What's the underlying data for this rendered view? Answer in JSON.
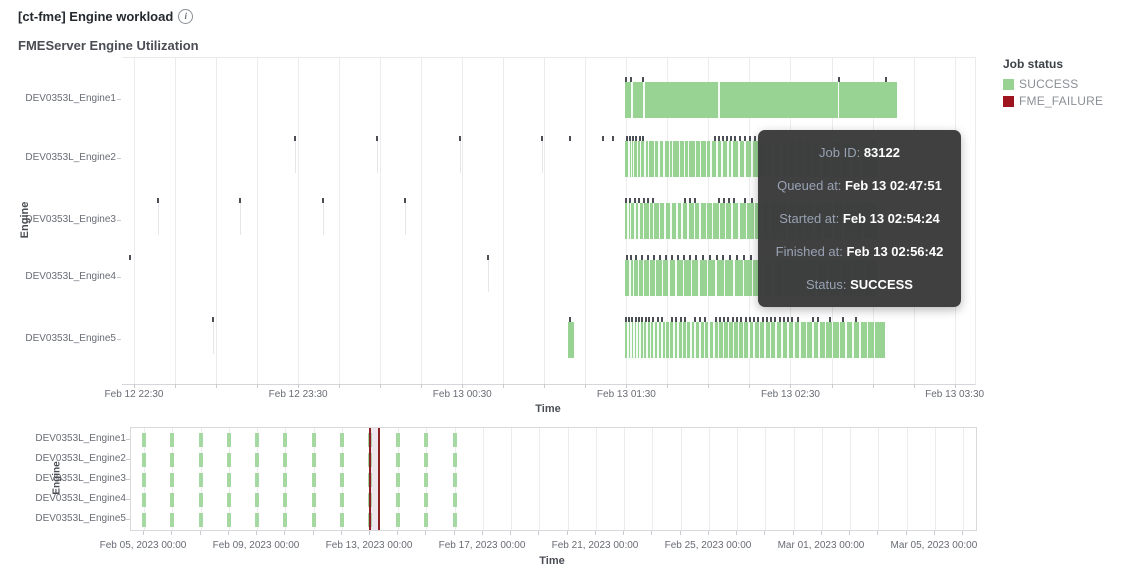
{
  "page": {
    "title": "[ct-fme] Engine workload"
  },
  "legend": {
    "title": "Job status",
    "items": [
      {
        "label": "SUCCESS",
        "color": "#99d394"
      },
      {
        "label": "FME_FAILURE",
        "color": "#9e151f"
      }
    ]
  },
  "tooltip": {
    "rows": [
      {
        "label": "Job ID:",
        "value": "83122"
      },
      {
        "label": "Queued at:",
        "value": "Feb 13 02:47:51"
      },
      {
        "label": "Started at:",
        "value": "Feb 13 02:54:24"
      },
      {
        "label": "Finished at:",
        "value": "Feb 13 02:56:42"
      },
      {
        "label": "Status:",
        "value": "SUCCESS"
      }
    ]
  },
  "chart_data": [
    {
      "type": "bar",
      "subtype": "gantt-timeline",
      "title": "FMEServer Engine Utilization",
      "xlabel": "Time",
      "ylabel": "Engine",
      "legend_position": "right",
      "categories": [
        "DEV0353L_Engine1",
        "DEV0353L_Engine2",
        "DEV0353L_Engine3",
        "DEV0353L_Engine4",
        "DEV0353L_Engine5"
      ],
      "x_ticks": [
        {
          "label": "Feb 12 22:30",
          "f": 0.0141
        },
        {
          "label": "Feb 12 23:30",
          "f": 0.2065
        },
        {
          "label": "Feb 13 00:30",
          "f": 0.3989
        },
        {
          "label": "Feb 13 01:30",
          "f": 0.5913
        },
        {
          "label": "Feb 13 02:30",
          "f": 0.7837
        },
        {
          "label": "Feb 13 03:30",
          "f": 0.9761
        }
      ],
      "grid": {
        "start": 0.0141,
        "step": 0.0481,
        "count": 21,
        "label_every": 4
      },
      "colors": {
        "success": "#99d394",
        "failure": "#9e151f",
        "mark": "#4b4f55",
        "stripe": "rgba(255,255,255,0.9)",
        "stem": "rgba(120,120,135,0.18)",
        "grid": "#ececef",
        "tick": "#c9c9ce"
      },
      "engines": [
        {
          "name": "DEV0353L_Engine1",
          "bars": [
            [
              0.59,
              0.908
            ]
          ],
          "stripes": [
            0.597,
            0.611,
            0.699,
            0.839
          ],
          "marks": [
            0.591,
            0.597,
            0.611,
            0.84,
            0.896
          ],
          "stems": []
        },
        {
          "name": "DEV0353L_Engine2",
          "bars": [
            [
              0.59,
              0.885
            ]
          ],
          "stripes": [
            0.5935,
            0.5965,
            0.599,
            0.6035,
            0.607,
            0.6125,
            0.6165,
            0.6235,
            0.6285,
            0.6345,
            0.641,
            0.6445,
            0.6525,
            0.6585,
            0.6635,
            0.6715,
            0.6775,
            0.6845,
            0.6895,
            0.6965,
            0.7025,
            0.7095,
            0.7145,
            0.7225,
            0.7295,
            0.7375,
            0.7455,
            0.7545,
            0.7625,
            0.7715,
            0.7795,
            0.7895,
            0.7985,
            0.8085,
            0.8185,
            0.8295,
            0.8415,
            0.8535,
            0.8655,
            0.8755
          ],
          "marks": [
            0.203,
            0.299,
            0.396,
            0.492,
            0.525,
            0.564,
            0.576,
            0.592,
            0.5955,
            0.599,
            0.603,
            0.607,
            0.611,
            0.695,
            0.7,
            0.704,
            0.709,
            0.714,
            0.719,
            0.724,
            0.73,
            0.736,
            0.742
          ],
          "stems": [
            0.203,
            0.299,
            0.396,
            0.492
          ]
        },
        {
          "name": "DEV0353L_Engine3",
          "bars": [
            [
              0.59,
              0.885
            ]
          ],
          "stripes": [
            0.5925,
            0.5955,
            0.6005,
            0.6055,
            0.6105,
            0.6175,
            0.6225,
            0.6295,
            0.6355,
            0.6425,
            0.6495,
            0.6555,
            0.6625,
            0.6705,
            0.6765,
            0.6845,
            0.6915,
            0.6995,
            0.7065,
            0.7145,
            0.7225,
            0.7315,
            0.7405,
            0.7495,
            0.7585,
            0.7685,
            0.7785,
            0.7885,
            0.7995,
            0.8105,
            0.8215,
            0.8325,
            0.8445,
            0.8565,
            0.8685
          ],
          "marks": [
            0.042,
            0.138,
            0.236,
            0.332,
            0.591,
            0.596,
            0.601,
            0.606,
            0.612,
            0.617,
            0.623,
            0.66,
            0.666,
            0.672,
            0.7,
            0.706,
            0.712,
            0.718,
            0.73,
            0.738
          ],
          "stems": [
            0.042,
            0.138,
            0.236,
            0.332
          ]
        },
        {
          "name": "DEV0353L_Engine4",
          "bars": [
            [
              0.59,
              0.885
            ]
          ],
          "stripes": [
            0.5945,
            0.5985,
            0.6045,
            0.6105,
            0.6175,
            0.6245,
            0.6325,
            0.6405,
            0.6485,
            0.6575,
            0.6665,
            0.6755,
            0.6855,
            0.6955,
            0.7055,
            0.7165,
            0.7275,
            0.7385,
            0.7505,
            0.7625,
            0.7745,
            0.7875,
            0.8005,
            0.8135,
            0.8275,
            0.8415,
            0.8555,
            0.8695
          ],
          "marks": [
            0.009,
            0.429,
            0.592,
            0.597,
            0.603,
            0.61,
            0.617,
            0.624,
            0.631,
            0.638,
            0.645,
            0.652,
            0.659,
            0.666,
            0.673,
            0.681,
            0.689,
            0.697,
            0.705,
            0.713,
            0.721,
            0.729,
            0.737
          ],
          "stems": [
            0.429
          ]
        },
        {
          "name": "DEV0353L_Engine5",
          "bars": [
            [
              0.523,
              0.53
            ],
            [
              0.59,
              0.894
            ]
          ],
          "stripes": [
            0.5925,
            0.596,
            0.5995,
            0.603,
            0.6065,
            0.6105,
            0.6145,
            0.6185,
            0.623,
            0.6275,
            0.632,
            0.6365,
            0.641,
            0.646,
            0.651,
            0.656,
            0.661,
            0.666,
            0.671,
            0.6765,
            0.682,
            0.6875,
            0.693,
            0.6985,
            0.704,
            0.71,
            0.716,
            0.722,
            0.728,
            0.734,
            0.74,
            0.7465,
            0.753,
            0.7595,
            0.766,
            0.773,
            0.78,
            0.787,
            0.794,
            0.8015,
            0.809,
            0.8165,
            0.824,
            0.832,
            0.84,
            0.848,
            0.856,
            0.8645,
            0.873,
            0.8815
          ],
          "marks": [
            0.107,
            0.525,
            0.591,
            0.594,
            0.598,
            0.602,
            0.606,
            0.61,
            0.614,
            0.618,
            0.623,
            0.628,
            0.633,
            0.645,
            0.65,
            0.655,
            0.66,
            0.672,
            0.678,
            0.684,
            0.696,
            0.701,
            0.706,
            0.711,
            0.716,
            0.721,
            0.726,
            0.731,
            0.736,
            0.741,
            0.746,
            0.751,
            0.756,
            0.761,
            0.766,
            0.771,
            0.776,
            0.781,
            0.786,
            0.792,
            0.81,
            0.816,
            0.83,
            0.845,
            0.86
          ],
          "stems": [
            0.107
          ]
        }
      ]
    },
    {
      "type": "bar",
      "subtype": "overview-timeline",
      "xlabel": "Time",
      "ylabel": "Engine",
      "categories": [
        "DEV0353L_Engine1",
        "DEV0353L_Engine2",
        "DEV0353L_Engine3",
        "DEV0353L_Engine4",
        "DEV0353L_Engine5"
      ],
      "x_ticks": [
        {
          "label": "Feb 05, 2023 00:00",
          "f": 0.0154
        },
        {
          "label": "Feb 09, 2023 00:00",
          "f": 0.1491
        },
        {
          "label": "Feb 13, 2023 00:00",
          "f": 0.2829
        },
        {
          "label": "Feb 17, 2023 00:00",
          "f": 0.4166
        },
        {
          "label": "Feb 21, 2023 00:00",
          "f": 0.5503
        },
        {
          "label": "Feb 25, 2023 00:00",
          "f": 0.684
        },
        {
          "label": "Mar 01, 2023 00:00",
          "f": 0.8177
        },
        {
          "label": "Mar 05, 2023 00:00",
          "f": 0.9514
        }
      ],
      "grid": {
        "start": 0.0154,
        "step": 0.03343,
        "count": 30,
        "label_every": 4
      },
      "job_tick_dates": [
        "Feb 05",
        "Feb 06",
        "Feb 07",
        "Feb 08",
        "Feb 09",
        "Feb 10",
        "Feb 11",
        "Feb 12",
        "Feb 13",
        "Feb 14",
        "Feb 15",
        "Feb 16"
      ],
      "job_ticks_f": [
        0.0154,
        0.0488,
        0.0823,
        0.1157,
        0.1491,
        0.1826,
        0.216,
        0.2494,
        0.2829,
        0.3163,
        0.3497,
        0.3832
      ],
      "selection": {
        "from_f": 0.2817,
        "to_f": 0.2947,
        "fill": "rgba(205,185,205,0.35)",
        "line": "#8c2024"
      },
      "colors": {
        "success": "#a6d8a1",
        "grid": "#ececef",
        "tick": "#c9c9ce"
      }
    }
  ]
}
